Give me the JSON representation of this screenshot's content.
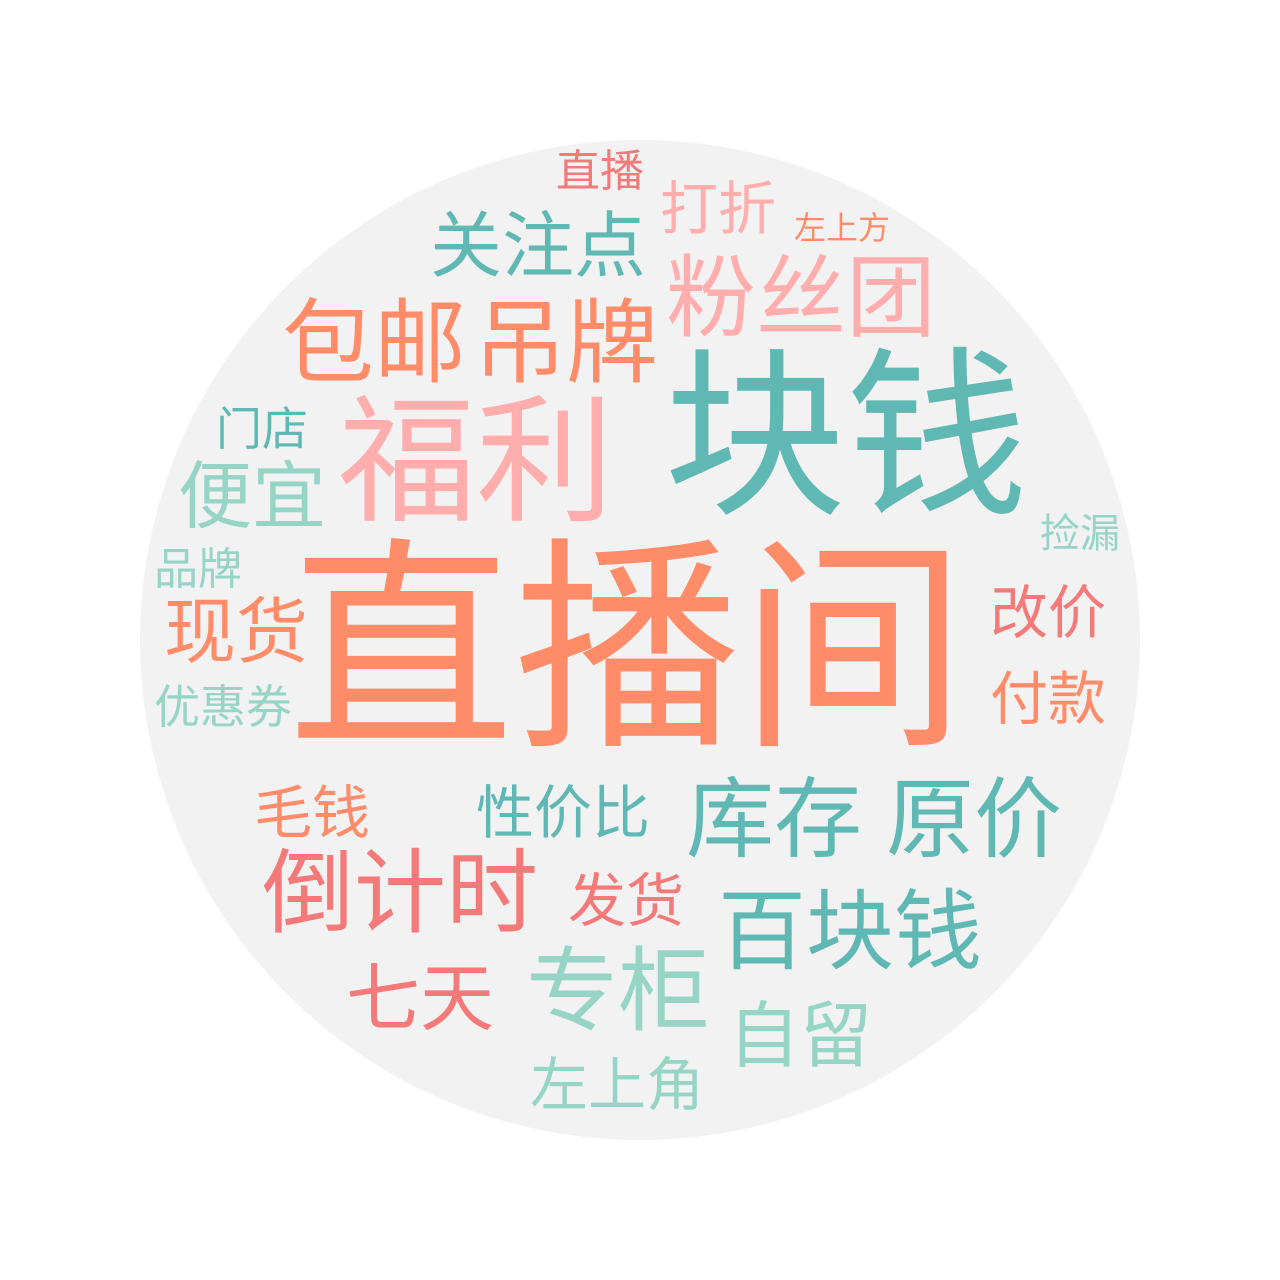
{
  "palette": {
    "background": "#ffffff",
    "circle": "#f2f2f2",
    "orange": "#ff8c69",
    "teal": "#5fb8b4",
    "pink": "#ffadad",
    "red": "#f47a7a",
    "mint": "#96d4c6"
  },
  "words": [
    {
      "text": "直播间",
      "color": "orange"
    },
    {
      "text": "块钱",
      "color": "teal"
    },
    {
      "text": "福利",
      "color": "pink"
    },
    {
      "text": "粉丝团",
      "color": "pink"
    },
    {
      "text": "包邮",
      "color": "orange"
    },
    {
      "text": "吊牌",
      "color": "orange"
    },
    {
      "text": "关注点",
      "color": "teal"
    },
    {
      "text": "打折",
      "color": "pink"
    },
    {
      "text": "直播",
      "color": "red"
    },
    {
      "text": "左上方",
      "color": "orange"
    },
    {
      "text": "门店",
      "color": "teal"
    },
    {
      "text": "便宜",
      "color": "mint"
    },
    {
      "text": "捡漏",
      "color": "mint"
    },
    {
      "text": "品牌",
      "color": "mint"
    },
    {
      "text": "现货",
      "color": "orange"
    },
    {
      "text": "改价",
      "color": "red"
    },
    {
      "text": "优惠券",
      "color": "mint"
    },
    {
      "text": "付款",
      "color": "orange"
    },
    {
      "text": "毛钱",
      "color": "orange"
    },
    {
      "text": "性价比",
      "color": "teal"
    },
    {
      "text": "库存",
      "color": "teal"
    },
    {
      "text": "原价",
      "color": "teal"
    },
    {
      "text": "倒计时",
      "color": "red"
    },
    {
      "text": "发货",
      "color": "red"
    },
    {
      "text": "百块钱",
      "color": "teal"
    },
    {
      "text": "七天",
      "color": "red"
    },
    {
      "text": "专柜",
      "color": "mint"
    },
    {
      "text": "自留",
      "color": "mint"
    },
    {
      "text": "左上角",
      "color": "mint"
    }
  ]
}
